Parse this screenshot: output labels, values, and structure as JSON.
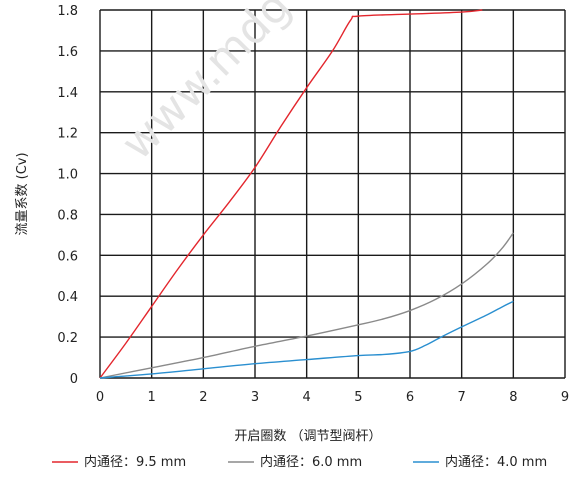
{
  "chart_data": {
    "type": "line",
    "xlabel": "开启圈数 （调节型阀杆）",
    "ylabel": "流量系数 (Cv)",
    "xlim": [
      0,
      9
    ],
    "ylim": [
      0,
      1.8
    ],
    "xticks": [
      "0",
      "1",
      "2",
      "3",
      "4",
      "5",
      "6",
      "7",
      "8",
      "9"
    ],
    "yticks": [
      "0",
      "0.2",
      "0.4",
      "0.6",
      "0.8",
      "1.0",
      "1.2",
      "1.4",
      "1.6",
      "1.8"
    ],
    "grid": true,
    "legend_position": "bottom",
    "watermark": "www.mdg",
    "series": [
      {
        "name": "内通径：9.5 mm",
        "color": "#e3262d",
        "points": [
          [
            0,
            0
          ],
          [
            0.5,
            0.17
          ],
          [
            1,
            0.35
          ],
          [
            1.5,
            0.53
          ],
          [
            2,
            0.7
          ],
          [
            2.5,
            0.86
          ],
          [
            3,
            1.03
          ],
          [
            3.5,
            1.23
          ],
          [
            4,
            1.42
          ],
          [
            4.5,
            1.6
          ],
          [
            4.85,
            1.75
          ],
          [
            5,
            1.77
          ],
          [
            6,
            1.78
          ],
          [
            7,
            1.79
          ],
          [
            7.4,
            1.8
          ]
        ]
      },
      {
        "name": "内通径：6.0 mm",
        "color": "#8a8a8a",
        "points": [
          [
            0,
            0
          ],
          [
            1,
            0.05
          ],
          [
            2,
            0.1
          ],
          [
            3,
            0.155
          ],
          [
            4,
            0.205
          ],
          [
            5,
            0.26
          ],
          [
            5.5,
            0.29
          ],
          [
            6,
            0.33
          ],
          [
            6.5,
            0.385
          ],
          [
            7,
            0.46
          ],
          [
            7.5,
            0.56
          ],
          [
            7.8,
            0.64
          ],
          [
            8,
            0.71
          ]
        ]
      },
      {
        "name": "内通径：4.0 mm",
        "color": "#2a8fd0",
        "points": [
          [
            0,
            0
          ],
          [
            1,
            0.02
          ],
          [
            2,
            0.045
          ],
          [
            3,
            0.07
          ],
          [
            4,
            0.09
          ],
          [
            5,
            0.11
          ],
          [
            5.5,
            0.115
          ],
          [
            6,
            0.13
          ],
          [
            6.3,
            0.16
          ],
          [
            6.6,
            0.2
          ],
          [
            7,
            0.25
          ],
          [
            7.5,
            0.31
          ],
          [
            7.8,
            0.35
          ],
          [
            8,
            0.375
          ]
        ]
      }
    ]
  }
}
